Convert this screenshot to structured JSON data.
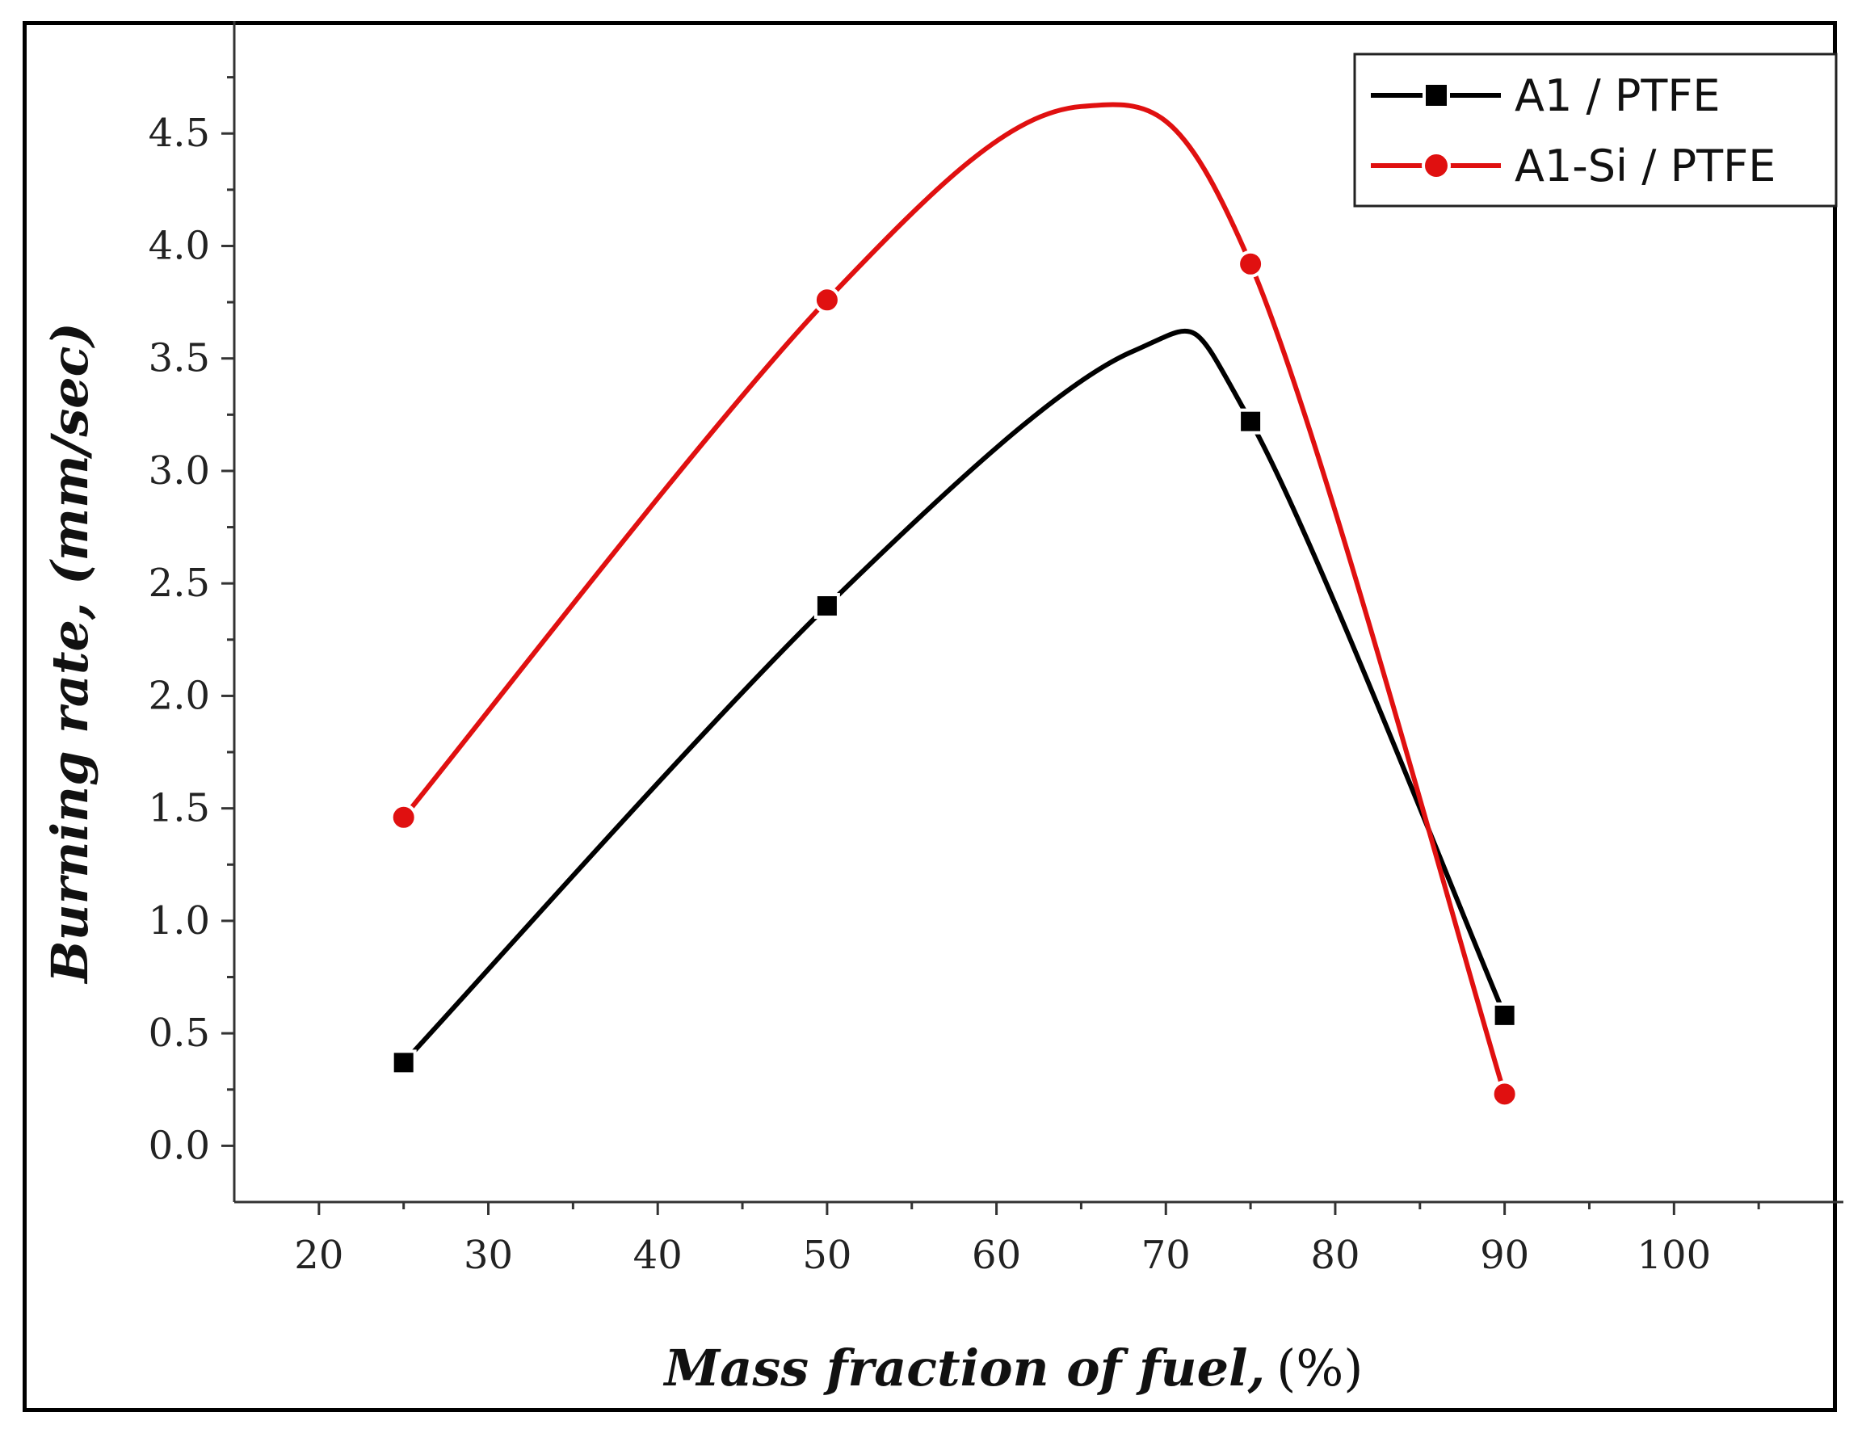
{
  "chart_data": {
    "type": "line",
    "title": "",
    "xlabel": "Mass fraction of fuel,",
    "xlabel_unit": "(%)",
    "ylabel": "Burning rate, (mm/sec)",
    "xlim": [
      15,
      110
    ],
    "ylim": [
      -0.25,
      5.0
    ],
    "x_ticks": [
      20,
      30,
      40,
      50,
      60,
      70,
      80,
      90,
      100
    ],
    "x_tick_labels": [
      "20",
      "30",
      "40",
      "50",
      "60",
      "70",
      "80",
      "90",
      "100"
    ],
    "y_ticks": [
      0.0,
      0.5,
      1.0,
      1.5,
      2.0,
      2.5,
      3.0,
      3.5,
      4.0,
      4.5
    ],
    "y_tick_labels": [
      "0.0",
      "0.5",
      "1.0",
      "1.5",
      "2.0",
      "2.5",
      "3.0",
      "3.5",
      "4.0",
      "4.5"
    ],
    "legend_position": "top-right",
    "series": [
      {
        "name": "A1 / PTFE",
        "color": "#000000",
        "marker": "square",
        "x": [
          25,
          50,
          75,
          90
        ],
        "y": [
          0.37,
          2.4,
          3.22,
          0.58
        ],
        "curve_peak": {
          "x": 68,
          "y": 3.53
        }
      },
      {
        "name": "A1-Si / PTFE",
        "color": "#e01010",
        "marker": "circle",
        "x": [
          25,
          50,
          75,
          90
        ],
        "y": [
          1.46,
          3.76,
          3.92,
          0.23
        ],
        "curve_peak": {
          "x": 65,
          "y": 4.62
        }
      }
    ]
  }
}
